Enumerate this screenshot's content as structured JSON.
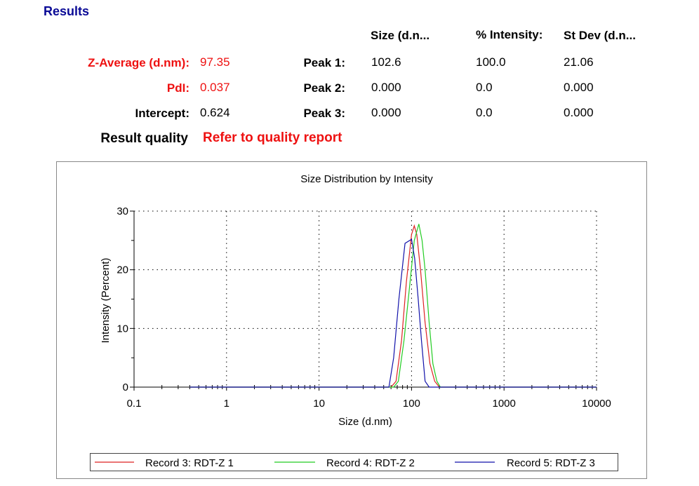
{
  "results": {
    "title": "Results",
    "headers": [
      "Size (d.n...",
      "% Intensity:",
      "St Dev (d.n..."
    ],
    "z_average": {
      "label": "Z-Average (d.nm):",
      "value": "97.35"
    },
    "pdi": {
      "label": "PdI:",
      "value": "0.037"
    },
    "intercept": {
      "label": "Intercept:",
      "value": "0.624"
    },
    "peaks": [
      {
        "label": "Peak 1:",
        "size": "102.6",
        "intensity": "100.0",
        "stdev": "21.06"
      },
      {
        "label": "Peak 2:",
        "size": "0.000",
        "intensity": "0.0",
        "stdev": "0.000"
      },
      {
        "label": "Peak 3:",
        "size": "0.000",
        "intensity": "0.0",
        "stdev": "0.000"
      }
    ],
    "quality": {
      "label": "Result quality",
      "value": "Refer to quality report"
    }
  },
  "chart_data": {
    "type": "line",
    "title": "Size Distribution by Intensity",
    "xlabel": "Size (d.nm)",
    "ylabel": "Intensity (Percent)",
    "x_scale": "log",
    "xlim": [
      0.1,
      10000
    ],
    "ylim": [
      0,
      30
    ],
    "x_ticks": [
      "0.1",
      "1",
      "10",
      "100",
      "1000",
      "10000"
    ],
    "y_ticks": [
      "0",
      "10",
      "20",
      "30"
    ],
    "grid": true,
    "legend_position": "bottom",
    "series": [
      {
        "name": "Record 3: RDT-Z 1",
        "color": "#dd2222",
        "points": [
          [
            0.4,
            0
          ],
          [
            60,
            0
          ],
          [
            68,
            1
          ],
          [
            78,
            8
          ],
          [
            88,
            18
          ],
          [
            100,
            26
          ],
          [
            107,
            27.5
          ],
          [
            114,
            26
          ],
          [
            125,
            20
          ],
          [
            140,
            11
          ],
          [
            158,
            4
          ],
          [
            178,
            1
          ],
          [
            200,
            0
          ],
          [
            10000,
            0
          ]
        ]
      },
      {
        "name": "Record 4: RDT-Z 2",
        "color": "#22cc22",
        "points": [
          [
            0.4,
            0
          ],
          [
            64,
            0
          ],
          [
            72,
            1
          ],
          [
            83,
            8
          ],
          [
            95,
            17
          ],
          [
            107,
            25
          ],
          [
            120,
            27.8
          ],
          [
            130,
            25
          ],
          [
            140,
            20
          ],
          [
            155,
            11
          ],
          [
            170,
            4
          ],
          [
            188,
            1
          ],
          [
            205,
            0
          ],
          [
            10000,
            0
          ]
        ]
      },
      {
        "name": "Record 5: RDT-Z 3",
        "color": "#1111aa",
        "points": [
          [
            0.4,
            0
          ],
          [
            57,
            0
          ],
          [
            64,
            5
          ],
          [
            73,
            15
          ],
          [
            85,
            24.5
          ],
          [
            100,
            25.2
          ],
          [
            108,
            22
          ],
          [
            118,
            15
          ],
          [
            128,
            8
          ],
          [
            140,
            1
          ],
          [
            155,
            0
          ],
          [
            10000,
            0
          ]
        ]
      }
    ]
  }
}
